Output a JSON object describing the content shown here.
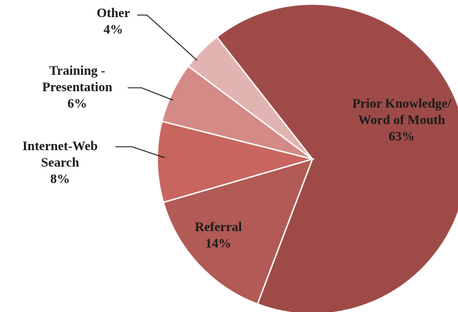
{
  "chart_data": {
    "type": "pie",
    "categories": [
      "Prior Knowledge/ Word of Mouth",
      "Referral",
      "Internet-Web Search",
      "Training - Presentation",
      "Other"
    ],
    "values": [
      63,
      14,
      8,
      6,
      4
    ],
    "value_labels": [
      "63%",
      "14%",
      "8%",
      "6%",
      "4%"
    ],
    "colors": [
      "#9e4b48",
      "#b25a55",
      "#c8655e",
      "#d48a86",
      "#e1b4b2"
    ]
  }
}
